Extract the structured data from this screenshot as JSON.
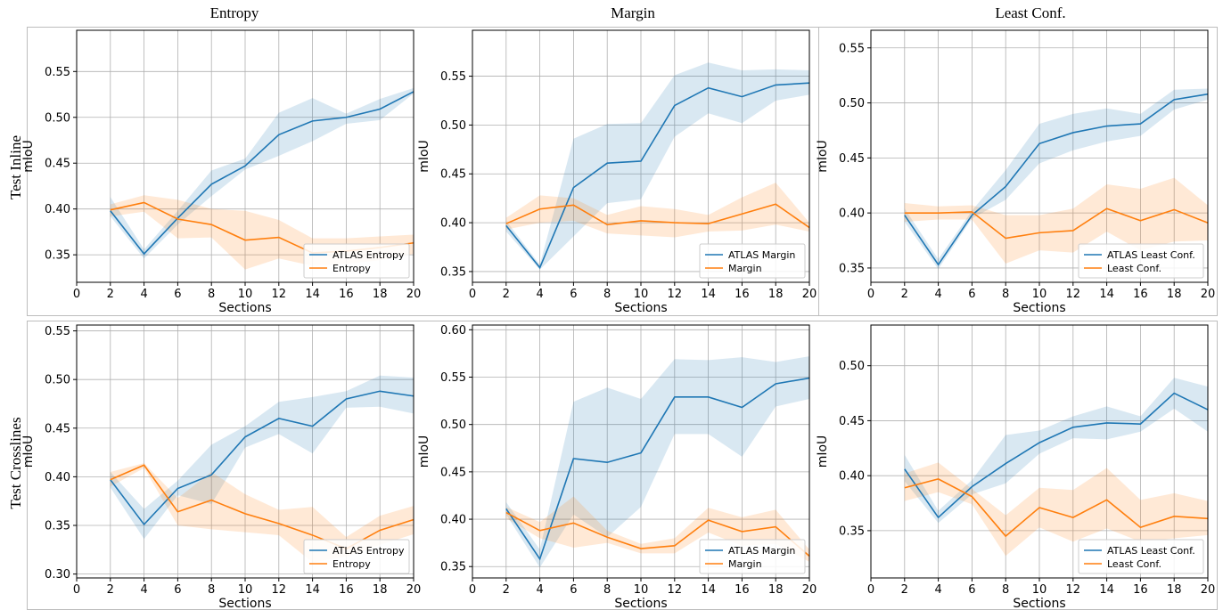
{
  "column_titles": [
    "Entropy",
    "Margin",
    "Least Conf."
  ],
  "row_titles": [
    "Test Inline",
    "Test Crosslines"
  ],
  "colors": {
    "atlas": "#1f77b4",
    "baseline": "#ff7f0e",
    "grid": "#b0b0b0"
  },
  "chart_data": [
    {
      "type": "line",
      "xlabel": "Sections",
      "ylabel": "mIoU",
      "xlim": [
        0,
        20
      ],
      "ylim": [
        0.32,
        0.595
      ],
      "xticks": [
        0,
        2,
        4,
        6,
        8,
        10,
        12,
        14,
        16,
        18,
        20
      ],
      "yticks": [
        0.35,
        0.4,
        0.45,
        0.5,
        0.55
      ],
      "ytick_labels": [
        "0.35",
        "0.40",
        "0.45",
        "0.50",
        "0.55"
      ],
      "legend": "lower-right",
      "x": [
        2,
        4,
        6,
        8,
        10,
        12,
        14,
        16,
        18,
        20
      ],
      "series": [
        {
          "name": "ATLAS Entropy",
          "role": "atlas",
          "values": [
            0.398,
            0.351,
            0.39,
            0.427,
            0.447,
            0.481,
            0.496,
            0.5,
            0.509,
            0.528
          ],
          "lower": [
            0.392,
            0.346,
            0.383,
            0.414,
            0.443,
            0.458,
            0.474,
            0.493,
            0.497,
            0.526
          ],
          "upper": [
            0.413,
            0.356,
            0.398,
            0.442,
            0.455,
            0.505,
            0.521,
            0.504,
            0.52,
            0.532
          ]
        },
        {
          "name": "Entropy",
          "role": "baseline",
          "values": [
            0.399,
            0.407,
            0.389,
            0.383,
            0.366,
            0.369,
            0.352,
            0.354,
            0.358,
            0.363
          ],
          "lower": [
            0.392,
            0.397,
            0.368,
            0.369,
            0.334,
            0.346,
            0.338,
            0.34,
            0.344,
            0.351
          ],
          "upper": [
            0.405,
            0.415,
            0.41,
            0.4,
            0.398,
            0.388,
            0.368,
            0.368,
            0.37,
            0.372
          ]
        }
      ]
    },
    {
      "type": "line",
      "xlabel": "Sections",
      "ylabel": "mIoU",
      "xlim": [
        0,
        20
      ],
      "ylim": [
        0.339,
        0.597
      ],
      "xticks": [
        0,
        2,
        4,
        6,
        8,
        10,
        12,
        14,
        16,
        18,
        20
      ],
      "yticks": [
        0.35,
        0.4,
        0.45,
        0.5,
        0.55
      ],
      "ytick_labels": [
        "0.35",
        "0.40",
        "0.45",
        "0.50",
        "0.55"
      ],
      "legend": "lower-right",
      "x": [
        2,
        4,
        6,
        8,
        10,
        12,
        14,
        16,
        18,
        20
      ],
      "series": [
        {
          "name": "ATLAS Margin",
          "role": "atlas",
          "values": [
            0.397,
            0.354,
            0.436,
            0.461,
            0.463,
            0.52,
            0.538,
            0.529,
            0.541,
            0.543
          ],
          "lower": [
            0.391,
            0.352,
            0.386,
            0.42,
            0.424,
            0.488,
            0.512,
            0.502,
            0.525,
            0.531
          ],
          "upper": [
            0.402,
            0.357,
            0.486,
            0.501,
            0.502,
            0.551,
            0.564,
            0.556,
            0.557,
            0.556
          ]
        },
        {
          "name": "Margin",
          "role": "baseline",
          "values": [
            0.399,
            0.414,
            0.418,
            0.398,
            0.402,
            0.4,
            0.399,
            0.409,
            0.419,
            0.395
          ],
          "lower": [
            0.393,
            0.4,
            0.402,
            0.389,
            0.387,
            0.385,
            0.391,
            0.392,
            0.398,
            0.391
          ],
          "upper": [
            0.405,
            0.428,
            0.425,
            0.408,
            0.417,
            0.414,
            0.408,
            0.426,
            0.441,
            0.4
          ]
        }
      ]
    },
    {
      "type": "line",
      "xlabel": "Sections",
      "ylabel": "mIoU",
      "xlim": [
        0,
        20
      ],
      "ylim": [
        0.337,
        0.566
      ],
      "xticks": [
        0,
        2,
        4,
        6,
        8,
        10,
        12,
        14,
        16,
        18,
        20
      ],
      "yticks": [
        0.35,
        0.4,
        0.45,
        0.5,
        0.55
      ],
      "ytick_labels": [
        "0.35",
        "0.40",
        "0.45",
        "0.50",
        "0.55"
      ],
      "legend": "lower-right",
      "x": [
        2,
        4,
        6,
        8,
        10,
        12,
        14,
        16,
        18,
        20
      ],
      "series": [
        {
          "name": "ATLAS Least Conf.",
          "role": "atlas",
          "values": [
            0.398,
            0.353,
            0.398,
            0.424,
            0.463,
            0.473,
            0.479,
            0.481,
            0.503,
            0.508
          ],
          "lower": [
            0.392,
            0.349,
            0.395,
            0.412,
            0.445,
            0.457,
            0.465,
            0.47,
            0.494,
            0.503
          ],
          "upper": [
            0.404,
            0.358,
            0.402,
            0.439,
            0.481,
            0.49,
            0.495,
            0.49,
            0.512,
            0.513
          ]
        },
        {
          "name": "Least Conf.",
          "role": "baseline",
          "values": [
            0.4,
            0.4,
            0.401,
            0.377,
            0.382,
            0.384,
            0.404,
            0.393,
            0.403,
            0.391
          ],
          "lower": [
            0.392,
            0.394,
            0.394,
            0.354,
            0.366,
            0.364,
            0.383,
            0.366,
            0.374,
            0.375
          ],
          "upper": [
            0.409,
            0.406,
            0.407,
            0.398,
            0.398,
            0.404,
            0.426,
            0.422,
            0.432,
            0.407
          ]
        }
      ]
    },
    {
      "type": "line",
      "xlabel": "Sections",
      "ylabel": "mIoU",
      "xlim": [
        0,
        20
      ],
      "ylim": [
        0.296,
        0.556
      ],
      "xticks": [
        0,
        2,
        4,
        6,
        8,
        10,
        12,
        14,
        16,
        18,
        20
      ],
      "yticks": [
        0.3,
        0.35,
        0.4,
        0.45,
        0.5,
        0.55
      ],
      "ytick_labels": [
        "0.30",
        "0.35",
        "0.40",
        "0.45",
        "0.50",
        "0.55"
      ],
      "legend": "lower-right",
      "x": [
        2,
        4,
        6,
        8,
        10,
        12,
        14,
        16,
        18,
        20
      ],
      "series": [
        {
          "name": "ATLAS Entropy",
          "role": "atlas",
          "values": [
            0.397,
            0.351,
            0.388,
            0.402,
            0.441,
            0.46,
            0.452,
            0.48,
            0.488,
            0.483
          ],
          "lower": [
            0.389,
            0.336,
            0.381,
            0.372,
            0.43,
            0.444,
            0.424,
            0.471,
            0.472,
            0.465
          ],
          "upper": [
            0.405,
            0.367,
            0.396,
            0.433,
            0.452,
            0.477,
            0.482,
            0.488,
            0.504,
            0.502
          ]
        },
        {
          "name": "Entropy",
          "role": "baseline",
          "values": [
            0.397,
            0.412,
            0.364,
            0.376,
            0.362,
            0.352,
            0.34,
            0.326,
            0.345,
            0.356
          ],
          "lower": [
            0.39,
            0.409,
            0.35,
            0.346,
            0.343,
            0.34,
            0.312,
            0.318,
            0.33,
            0.341
          ],
          "upper": [
            0.405,
            0.414,
            0.378,
            0.405,
            0.382,
            0.366,
            0.369,
            0.338,
            0.36,
            0.37
          ]
        }
      ]
    },
    {
      "type": "line",
      "xlabel": "Sections",
      "ylabel": "mIoU",
      "xlim": [
        0,
        20
      ],
      "ylim": [
        0.338,
        0.605
      ],
      "xticks": [
        0,
        2,
        4,
        6,
        8,
        10,
        12,
        14,
        16,
        18,
        20
      ],
      "yticks": [
        0.35,
        0.4,
        0.45,
        0.5,
        0.55,
        0.6
      ],
      "ytick_labels": [
        "0.35",
        "0.40",
        "0.45",
        "0.50",
        "0.55",
        "0.60"
      ],
      "legend": "lower-right",
      "x": [
        2,
        4,
        6,
        8,
        10,
        12,
        14,
        16,
        18,
        20
      ],
      "series": [
        {
          "name": "ATLAS Margin",
          "role": "atlas",
          "values": [
            0.411,
            0.358,
            0.464,
            0.46,
            0.47,
            0.529,
            0.529,
            0.518,
            0.543,
            0.549
          ],
          "lower": [
            0.405,
            0.349,
            0.405,
            0.381,
            0.413,
            0.49,
            0.49,
            0.466,
            0.519,
            0.527
          ],
          "upper": [
            0.418,
            0.368,
            0.524,
            0.539,
            0.527,
            0.569,
            0.568,
            0.571,
            0.566,
            0.572
          ]
        },
        {
          "name": "Margin",
          "role": "baseline",
          "values": [
            0.407,
            0.388,
            0.396,
            0.381,
            0.369,
            0.372,
            0.399,
            0.387,
            0.392,
            0.361
          ],
          "lower": [
            0.401,
            0.38,
            0.37,
            0.375,
            0.364,
            0.364,
            0.386,
            0.372,
            0.374,
            0.355
          ],
          "upper": [
            0.413,
            0.397,
            0.424,
            0.388,
            0.374,
            0.38,
            0.412,
            0.402,
            0.41,
            0.368
          ]
        }
      ]
    },
    {
      "type": "line",
      "xlabel": "Sections",
      "ylabel": "mIoU",
      "xlim": [
        0,
        20
      ],
      "ylim": [
        0.307,
        0.537
      ],
      "xticks": [
        0,
        2,
        4,
        6,
        8,
        10,
        12,
        14,
        16,
        18,
        20
      ],
      "yticks": [
        0.35,
        0.4,
        0.45,
        0.5
      ],
      "ytick_labels": [
        "0.35",
        "0.40",
        "0.45",
        "0.50"
      ],
      "legend": "lower-right",
      "x": [
        2,
        4,
        6,
        8,
        10,
        12,
        14,
        16,
        18,
        20
      ],
      "series": [
        {
          "name": "ATLAS Least Conf.",
          "role": "atlas",
          "values": [
            0.406,
            0.362,
            0.39,
            0.411,
            0.43,
            0.444,
            0.448,
            0.447,
            0.475,
            0.46
          ],
          "lower": [
            0.395,
            0.357,
            0.383,
            0.393,
            0.42,
            0.434,
            0.433,
            0.44,
            0.461,
            0.44
          ],
          "upper": [
            0.419,
            0.368,
            0.396,
            0.437,
            0.441,
            0.454,
            0.463,
            0.454,
            0.489,
            0.481
          ]
        },
        {
          "name": "Least Conf.",
          "role": "baseline",
          "values": [
            0.389,
            0.397,
            0.381,
            0.345,
            0.371,
            0.362,
            0.378,
            0.353,
            0.363,
            0.361
          ],
          "lower": [
            0.377,
            0.385,
            0.374,
            0.327,
            0.353,
            0.34,
            0.352,
            0.34,
            0.343,
            0.346
          ],
          "upper": [
            0.402,
            0.412,
            0.388,
            0.364,
            0.389,
            0.387,
            0.407,
            0.378,
            0.384,
            0.377
          ]
        }
      ]
    }
  ]
}
